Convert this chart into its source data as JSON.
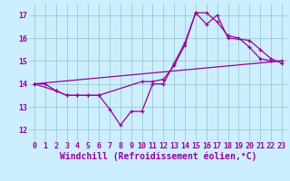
{
  "bg_color": "#cceeff",
  "line_color": "#990099",
  "grid_color": "#99cccc",
  "xlim": [
    -0.5,
    23.5
  ],
  "ylim": [
    11.5,
    17.5
  ],
  "xticks": [
    0,
    1,
    2,
    3,
    4,
    5,
    6,
    7,
    8,
    9,
    10,
    11,
    12,
    13,
    14,
    15,
    16,
    17,
    18,
    19,
    20,
    21,
    22,
    23
  ],
  "yticks": [
    12,
    13,
    14,
    15,
    16,
    17
  ],
  "xlabel": "Windchill (Refroidissement éolien,°C)",
  "line1_x": [
    0,
    1,
    2,
    3,
    4,
    5,
    6,
    7,
    8,
    9,
    10,
    11,
    12,
    13,
    14,
    15,
    16,
    17,
    18,
    19,
    20,
    21,
    22,
    23
  ],
  "line1_y": [
    14.0,
    14.0,
    13.7,
    13.5,
    13.5,
    13.5,
    13.5,
    12.9,
    12.2,
    12.8,
    12.8,
    14.0,
    14.0,
    14.9,
    15.8,
    17.1,
    17.1,
    16.7,
    16.1,
    16.0,
    15.6,
    15.1,
    15.0,
    15.0
  ],
  "line2_x": [
    0,
    2,
    3,
    4,
    5,
    6,
    10,
    11,
    12,
    13,
    14,
    15,
    16,
    17,
    18,
    20,
    21,
    22,
    23
  ],
  "line2_y": [
    14.0,
    13.7,
    13.5,
    13.5,
    13.5,
    13.5,
    14.1,
    14.1,
    14.2,
    14.8,
    15.7,
    17.1,
    16.6,
    17.0,
    16.0,
    15.9,
    15.5,
    15.1,
    14.9
  ],
  "line3_x": [
    0,
    23
  ],
  "line3_y": [
    14.0,
    15.0
  ],
  "tick_fontsize": 6,
  "xlabel_fontsize": 7
}
